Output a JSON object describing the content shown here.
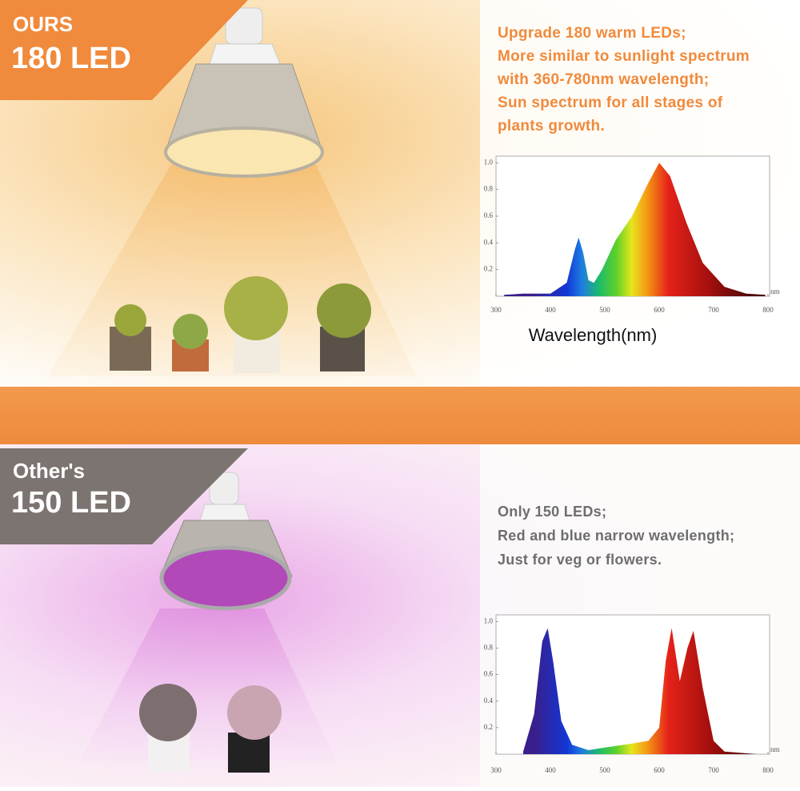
{
  "panels": [
    {
      "label_line1": "OURS",
      "label_line2": "180 LED",
      "description": [
        "Upgrade 180 warm LEDs;",
        "More similar to sunlight spectrum",
        "with 360-780nm wavelength;",
        "Sun spectrum for all stages of",
        "plants growth."
      ],
      "chart": {
        "type": "area",
        "x_label": "Wavelength(nm)",
        "x_unit": "nm",
        "xlim": [
          300,
          803
        ],
        "ylim": [
          0,
          1.05
        ],
        "xticks": [
          300,
          400,
          500,
          600,
          700,
          800
        ],
        "yticks": [
          0.2,
          0.4,
          0.6,
          {
            "value": 1,
            "label": "1.0"
          },
          0.8
        ],
        "x": [
          315,
          350,
          400,
          430,
          445,
          452,
          460,
          470,
          480,
          495,
          520,
          550,
          580,
          600,
          620,
          650,
          680,
          720,
          760,
          795
        ],
        "values": [
          0.01,
          0.02,
          0.02,
          0.1,
          0.35,
          0.44,
          0.33,
          0.12,
          0.1,
          0.2,
          0.42,
          0.6,
          0.85,
          1.0,
          0.9,
          0.55,
          0.25,
          0.07,
          0.02,
          0.01
        ]
      }
    },
    {
      "label_line1": "Other's",
      "label_line2": "150 LED",
      "description": [
        "Only 150 LEDs;",
        "Red and blue narrow wavelength;",
        "Just for veg or flowers."
      ],
      "chart": {
        "type": "area",
        "x_unit": "nm",
        "xlim": [
          300,
          803
        ],
        "ylim": [
          0,
          1.05
        ],
        "xticks": [
          300,
          400,
          500,
          600,
          700,
          800
        ],
        "yticks": [
          0.2,
          0.4,
          0.6,
          0.8,
          {
            "value": 1,
            "label": "1.0"
          }
        ],
        "x": [
          350,
          370,
          385,
          395,
          405,
          420,
          440,
          470,
          500,
          550,
          580,
          600,
          612,
          623,
          638,
          652,
          663,
          680,
          700,
          720,
          780
        ],
        "values": [
          0.02,
          0.3,
          0.85,
          0.95,
          0.7,
          0.25,
          0.07,
          0.03,
          0.05,
          0.08,
          0.1,
          0.2,
          0.7,
          0.95,
          0.55,
          0.8,
          0.93,
          0.5,
          0.1,
          0.02,
          0.0
        ]
      }
    }
  ]
}
